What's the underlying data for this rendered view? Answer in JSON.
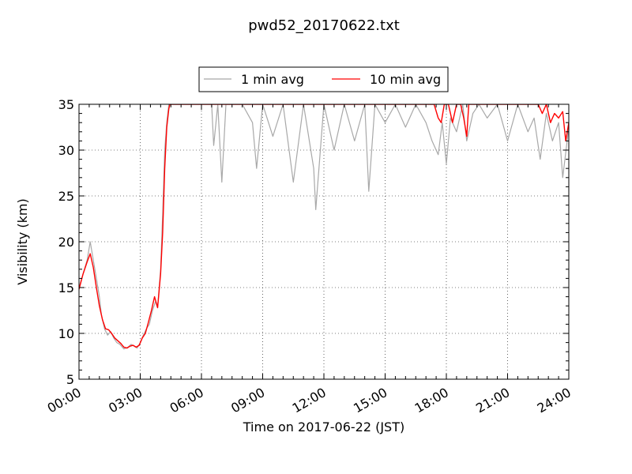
{
  "chart_data": {
    "type": "line",
    "title": "pwd52_20170622.txt",
    "xlabel": "Time on 2017-06-22 (JST)",
    "ylabel": "Visibility (km)",
    "xlim": [
      0,
      24
    ],
    "ylim": [
      5,
      35
    ],
    "xticks": [
      0,
      3,
      6,
      9,
      12,
      15,
      18,
      21,
      24
    ],
    "xtick_labels": [
      "00:00",
      "03:00",
      "06:00",
      "09:00",
      "12:00",
      "15:00",
      "18:00",
      "21:00",
      "24:00"
    ],
    "yticks": [
      5,
      10,
      15,
      20,
      25,
      30,
      35
    ],
    "ytick_labels": [
      "5",
      "10",
      "15",
      "20",
      "25",
      "30",
      "35"
    ],
    "grid": true,
    "legend_position": "top-center",
    "series": [
      {
        "name": "1 min avg",
        "color": "#a8a8a8",
        "x": [
          0.0,
          0.2,
          0.4,
          0.55,
          0.7,
          0.85,
          1.0,
          1.1,
          1.25,
          1.4,
          1.55,
          1.7,
          1.85,
          2.0,
          2.2,
          2.4,
          2.55,
          2.7,
          2.85,
          3.0,
          3.15,
          3.3,
          3.45,
          3.6,
          3.75,
          3.85,
          4.0,
          4.1,
          4.2,
          4.3,
          4.4,
          4.5,
          4.6,
          4.9,
          5.5,
          6.5,
          6.6,
          6.8,
          7.0,
          7.2,
          8.0,
          8.5,
          8.7,
          9.0,
          9.5,
          10.0,
          10.5,
          11.0,
          11.5,
          11.6,
          12.0,
          12.5,
          13.0,
          13.5,
          14.0,
          14.2,
          14.5,
          15.0,
          15.5,
          16.0,
          16.5,
          17.0,
          17.3,
          17.6,
          17.8,
          18.0,
          18.2,
          18.5,
          18.8,
          19.0,
          19.3,
          19.6,
          20.0,
          20.5,
          21.0,
          21.5,
          22.0,
          22.3,
          22.6,
          22.9,
          23.2,
          23.5,
          23.7,
          24.0
        ],
        "y": [
          15.0,
          16.5,
          18.0,
          20.0,
          18.0,
          16.0,
          14.0,
          12.0,
          10.5,
          9.8,
          10.2,
          9.5,
          9.0,
          8.8,
          8.3,
          8.5,
          8.8,
          8.6,
          8.4,
          9.0,
          9.8,
          10.5,
          11.0,
          12.5,
          13.5,
          12.8,
          17.0,
          23.0,
          30.0,
          33.0,
          35.0,
          35.0,
          35.0,
          35.0,
          35.0,
          35.0,
          30.5,
          35.0,
          26.5,
          35.0,
          35.0,
          33.0,
          28.0,
          35.0,
          31.5,
          35.0,
          26.5,
          35.0,
          28.0,
          23.5,
          35.0,
          30.0,
          35.0,
          31.0,
          35.0,
          25.5,
          35.0,
          33.0,
          35.0,
          32.5,
          35.0,
          33.0,
          31.0,
          29.5,
          33.0,
          28.5,
          33.5,
          32.0,
          35.0,
          31.0,
          34.0,
          35.0,
          33.5,
          35.0,
          31.0,
          35.0,
          32.0,
          33.5,
          29.0,
          34.0,
          31.0,
          33.0,
          27.0,
          32.5
        ]
      },
      {
        "name": "10 min avg",
        "color": "#ff0000",
        "x": [
          0.0,
          0.2,
          0.4,
          0.55,
          0.7,
          0.85,
          1.0,
          1.15,
          1.3,
          1.45,
          1.6,
          1.75,
          1.9,
          2.05,
          2.2,
          2.35,
          2.5,
          2.65,
          2.8,
          2.95,
          3.1,
          3.25,
          3.4,
          3.55,
          3.7,
          3.85,
          4.0,
          4.1,
          4.2,
          4.3,
          4.4,
          4.45,
          17.4,
          17.6,
          17.75,
          17.9,
          18.1,
          18.3,
          18.5,
          18.7,
          18.85,
          19.0,
          19.1,
          19.3,
          22.5,
          22.7,
          22.9,
          23.1,
          23.3,
          23.5,
          23.7,
          23.85,
          24.0
        ],
        "y": [
          14.8,
          16.5,
          17.8,
          18.7,
          17.2,
          15.0,
          13.0,
          11.5,
          10.5,
          10.4,
          10.0,
          9.5,
          9.2,
          8.9,
          8.5,
          8.4,
          8.6,
          8.7,
          8.5,
          8.7,
          9.5,
          10.0,
          11.2,
          12.5,
          14.0,
          12.8,
          16.5,
          21.0,
          28.0,
          32.5,
          34.5,
          35.0,
          35.0,
          33.5,
          33.0,
          35.0,
          35.0,
          33.0,
          35.0,
          35.0,
          33.5,
          31.5,
          35.0,
          35.0,
          35.0,
          34.0,
          35.0,
          33.0,
          34.0,
          33.5,
          34.2,
          31.0,
          33.0
        ]
      }
    ]
  }
}
